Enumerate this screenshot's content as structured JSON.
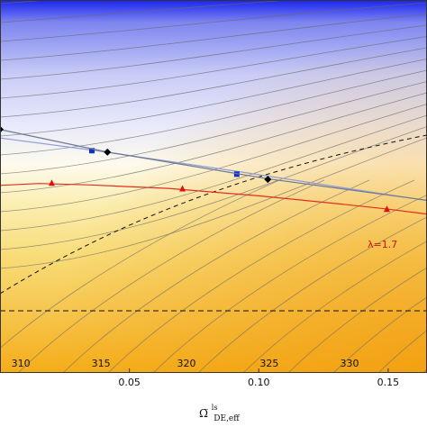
{
  "chart_data": {
    "type": "contour",
    "xlabel": "Ω̅",
    "xlabel_super": "ls",
    "xlabel_sub": "DE,eff",
    "xlim": [
      0.0,
      0.165
    ],
    "x_ticks": [
      {
        "value": 0.05,
        "label": "0.05"
      },
      {
        "value": 0.1,
        "label": "0.10"
      },
      {
        "value": 0.15,
        "label": "0.15"
      }
    ],
    "colors": {
      "top": "#1a24ee",
      "upper": "#c9ccf6",
      "mid": "#fdfbee",
      "lower": "#f7d25a",
      "bottom": "#f5ad18",
      "red": "#e03020",
      "blue_line": "#8c9fd8",
      "gray_line": "#6f7990"
    },
    "contour_labels": [
      {
        "text": "310",
        "x": 0.003
      },
      {
        "text": "315",
        "x": 0.034
      },
      {
        "text": "320",
        "x": 0.067
      },
      {
        "text": "325",
        "x": 0.099
      },
      {
        "text": "330",
        "x": 0.13
      }
    ],
    "series": [
      {
        "color": "#e03020",
        "marker": "triangle",
        "label": "λ=1.7",
        "points": [
          [
            0.0,
            0.497
          ],
          [
            0.015,
            0.492
          ],
          [
            0.035,
            0.496
          ],
          [
            0.065,
            0.505
          ],
          [
            0.1,
            0.525
          ],
          [
            0.13,
            0.546
          ],
          [
            0.149,
            0.56
          ],
          [
            0.165,
            0.574
          ]
        ],
        "marker_points": [
          [
            0.02,
            0.491
          ],
          [
            0.0705,
            0.506
          ],
          [
            0.1495,
            0.561
          ]
        ]
      },
      {
        "color": "#8c9fd8",
        "marker": "square",
        "points": [
          [
            0.0,
            0.37
          ],
          [
            0.035,
            0.402
          ],
          [
            0.092,
            0.46
          ],
          [
            0.165,
            0.538
          ]
        ],
        "marker_points": [
          [
            0.0355,
            0.404
          ],
          [
            0.0915,
            0.467
          ]
        ]
      },
      {
        "color": "#6f7990",
        "marker": "diamond",
        "points": [
          [
            0.0,
            0.347
          ],
          [
            0.041,
            0.407
          ],
          [
            0.104,
            0.48
          ],
          [
            0.165,
            0.537
          ]
        ],
        "marker_points": [
          [
            0.0,
            0.347
          ],
          [
            0.0415,
            0.408
          ],
          [
            0.1035,
            0.481
          ]
        ]
      }
    ]
  }
}
